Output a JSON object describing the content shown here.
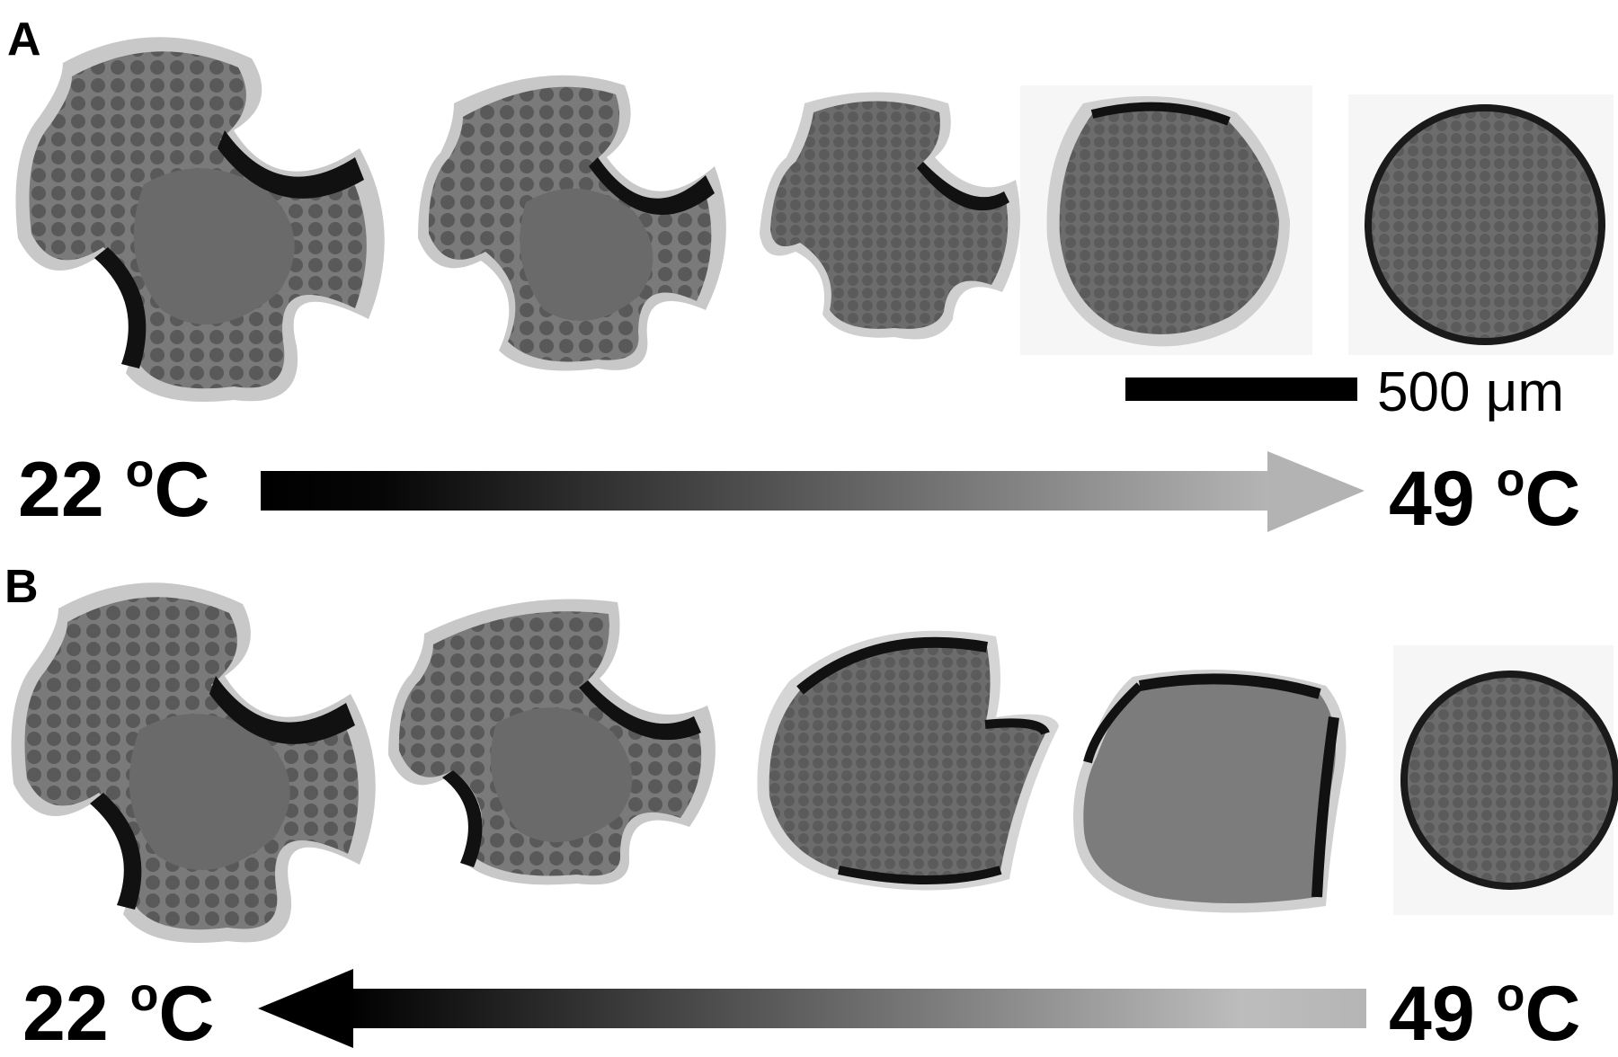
{
  "panels": [
    {
      "letter": "A",
      "left_temp": {
        "value": "22 ",
        "unit_sup": "o",
        "unit": "C"
      },
      "right_temp": {
        "value": "49 ",
        "unit_sup": "o",
        "unit": "C"
      },
      "arrow_direction": "right"
    },
    {
      "letter": "B",
      "left_temp": {
        "value": "22 ",
        "unit_sup": "o",
        "unit": "C"
      },
      "right_temp": {
        "value": "49 ",
        "unit_sup": "o",
        "unit": "C"
      },
      "arrow_direction": "left"
    }
  ],
  "scale_bar": {
    "label": "500 μm"
  },
  "colors": {
    "dark": "#111111",
    "mid": "#666666",
    "light": "#bdbdbd",
    "cell": "#5a5a5a"
  }
}
